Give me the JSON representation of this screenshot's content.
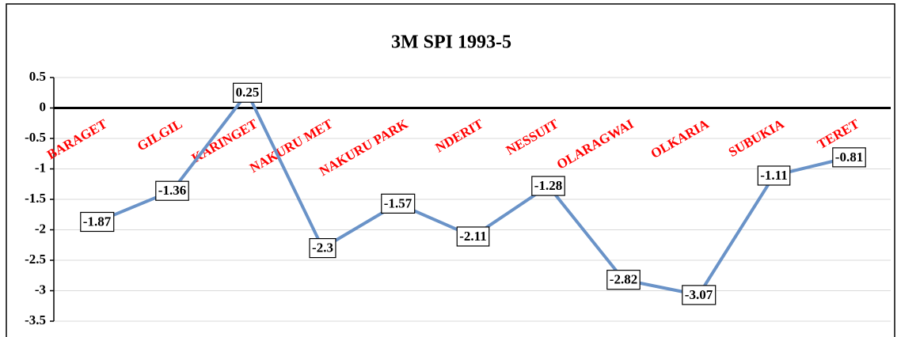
{
  "chart_data": {
    "type": "line",
    "title": "3M SPI 1993-5",
    "categories": [
      "BARAGET",
      "GILGIL",
      "KARINGET",
      "NAKURU MET",
      "NAKURU PARK",
      "NDERIT",
      "NESSUIT",
      "OLARAGWAI",
      "OLKARIA",
      "SUBUKIA",
      "TERET"
    ],
    "series": [
      {
        "name": "3M SPI 1993-5",
        "color": "#6a93c8",
        "values": [
          -1.87,
          -1.36,
          0.25,
          -2.3,
          -1.57,
          -2.11,
          -1.28,
          -2.82,
          -3.07,
          -1.11,
          -0.81
        ]
      }
    ],
    "ylim": [
      -3.5,
      0.5
    ],
    "yticks": [
      0.5,
      0,
      -0.5,
      -1,
      -1.5,
      -2,
      -2.5,
      -3,
      -3.5
    ],
    "grid": true
  }
}
